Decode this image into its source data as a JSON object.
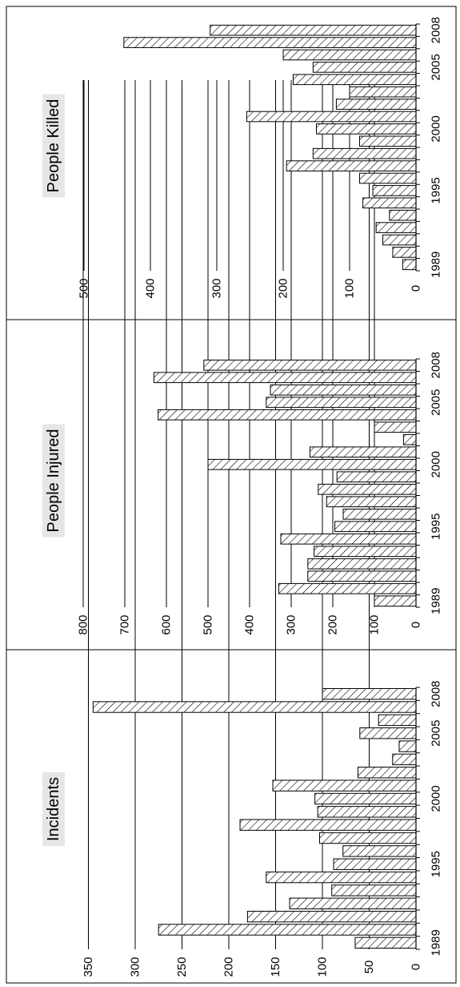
{
  "chart_data": [
    {
      "type": "bar",
      "orientation": "rotated-90",
      "title": "Incidents",
      "ylim": [
        0,
        350
      ],
      "yticks": [
        "0",
        "50",
        "100",
        "150",
        "200",
        "250",
        "300",
        "350"
      ],
      "year_labels": [
        "1989",
        "1995",
        "2000",
        "2005",
        "2008"
      ],
      "categories": [
        "1989",
        "1990",
        "1991",
        "1992",
        "1993",
        "1994",
        "1995",
        "1996",
        "1997",
        "1998",
        "1999",
        "2000",
        "2001",
        "2002",
        "2003",
        "2004",
        "2005",
        "2006",
        "2007",
        "2008"
      ],
      "values": [
        65,
        275,
        180,
        135,
        90,
        160,
        88,
        78,
        103,
        188,
        105,
        108,
        153,
        62,
        25,
        18,
        60,
        40,
        345,
        100
      ],
      "grid": true
    },
    {
      "type": "bar",
      "orientation": "rotated-90",
      "title": "People Injured",
      "ylim": [
        0,
        800
      ],
      "yticks": [
        "0",
        "100",
        "200",
        "300",
        "400",
        "500",
        "600",
        "700",
        "800"
      ],
      "year_labels": [
        "1989",
        "1995",
        "2000",
        "2005",
        "2008"
      ],
      "categories": [
        "1989",
        "1990",
        "1991",
        "1992",
        "1993",
        "1994",
        "1995",
        "1996",
        "1997",
        "1998",
        "1999",
        "2000",
        "2001",
        "2002",
        "2003",
        "2004",
        "2005",
        "2006",
        "2007",
        "2008"
      ],
      "values": [
        100,
        330,
        260,
        260,
        245,
        325,
        195,
        175,
        215,
        235,
        190,
        500,
        255,
        30,
        100,
        620,
        360,
        350,
        630,
        510
      ],
      "grid": true
    },
    {
      "type": "bar",
      "orientation": "rotated-90",
      "title": "People Killed",
      "ylim": [
        0,
        500
      ],
      "yticks": [
        "0",
        "100",
        "200",
        "300",
        "400",
        "500"
      ],
      "year_labels": [
        "1989",
        "1995",
        "2000",
        "2005",
        "2008"
      ],
      "categories": [
        "1989",
        "1990",
        "1991",
        "1992",
        "1993",
        "1994",
        "1995",
        "1996",
        "1997",
        "1998",
        "1999",
        "2000",
        "2001",
        "2002",
        "2003",
        "2004",
        "2005",
        "2006",
        "2007",
        "2008"
      ],
      "values": [
        20,
        35,
        50,
        60,
        40,
        80,
        65,
        85,
        195,
        155,
        85,
        150,
        255,
        120,
        100,
        185,
        155,
        200,
        440,
        310
      ],
      "grid": true
    }
  ]
}
